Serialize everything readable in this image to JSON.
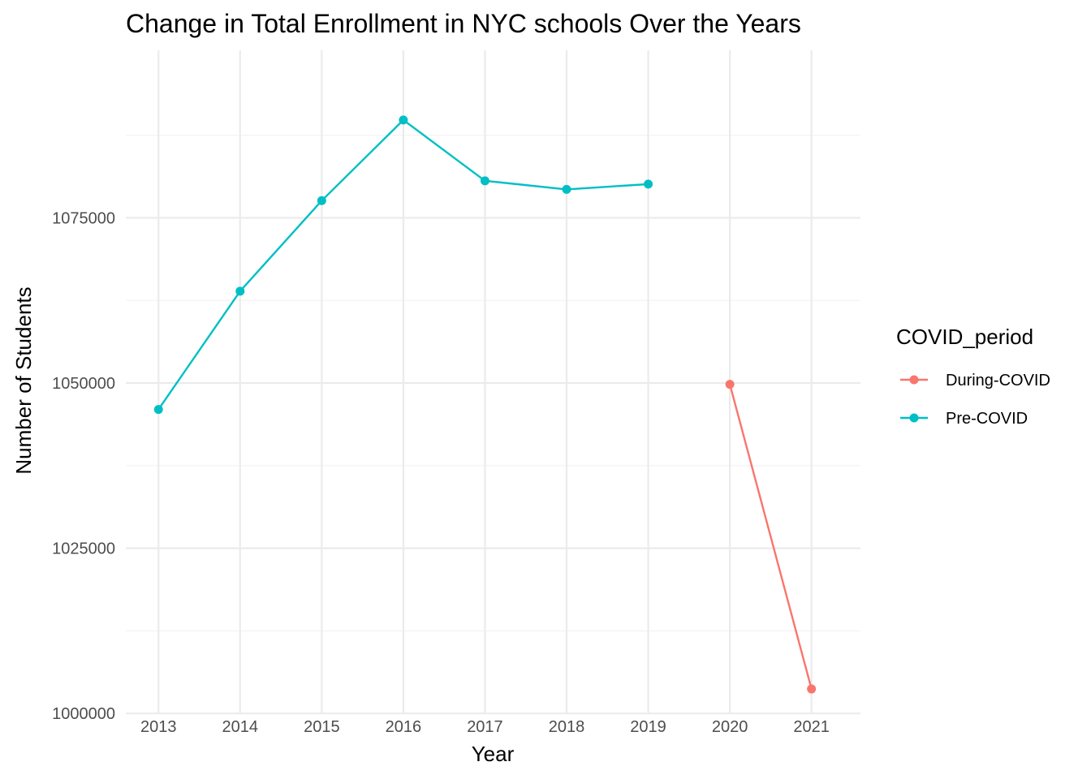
{
  "chart_data": {
    "type": "line",
    "title": "Change in Total Enrollment in NYC schools Over the Years",
    "xlabel": "Year",
    "ylabel": "Number of Students",
    "x_ticks": [
      "2013",
      "2014",
      "2015",
      "2016",
      "2017",
      "2018",
      "2019",
      "2020",
      "2021"
    ],
    "xlim": [
      2012.6,
      2021.6
    ],
    "y_ticks": [
      1000000,
      1025000,
      1050000,
      1075000
    ],
    "y_tick_labels": [
      "1000000",
      "1025000",
      "1050000",
      "1075000"
    ],
    "ylim": [
      999900,
      1100350
    ],
    "grid": true,
    "legend": {
      "title": "COVID_period",
      "position": "right",
      "entries": [
        {
          "label": "During-COVID",
          "color": "#F8766D"
        },
        {
          "label": "Pre-COVID",
          "color": "#00BFC4"
        }
      ]
    },
    "series": [
      {
        "name": "Pre-COVID",
        "color": "#00BFC4",
        "x": [
          2013,
          2014,
          2015,
          2016,
          2017,
          2018,
          2019
        ],
        "y": [
          1046000,
          1063900,
          1077600,
          1089800,
          1080600,
          1079300,
          1080100
        ]
      },
      {
        "name": "During-COVID",
        "color": "#F8766D",
        "x": [
          2020,
          2021
        ],
        "y": [
          1049800,
          1003700
        ]
      }
    ]
  }
}
